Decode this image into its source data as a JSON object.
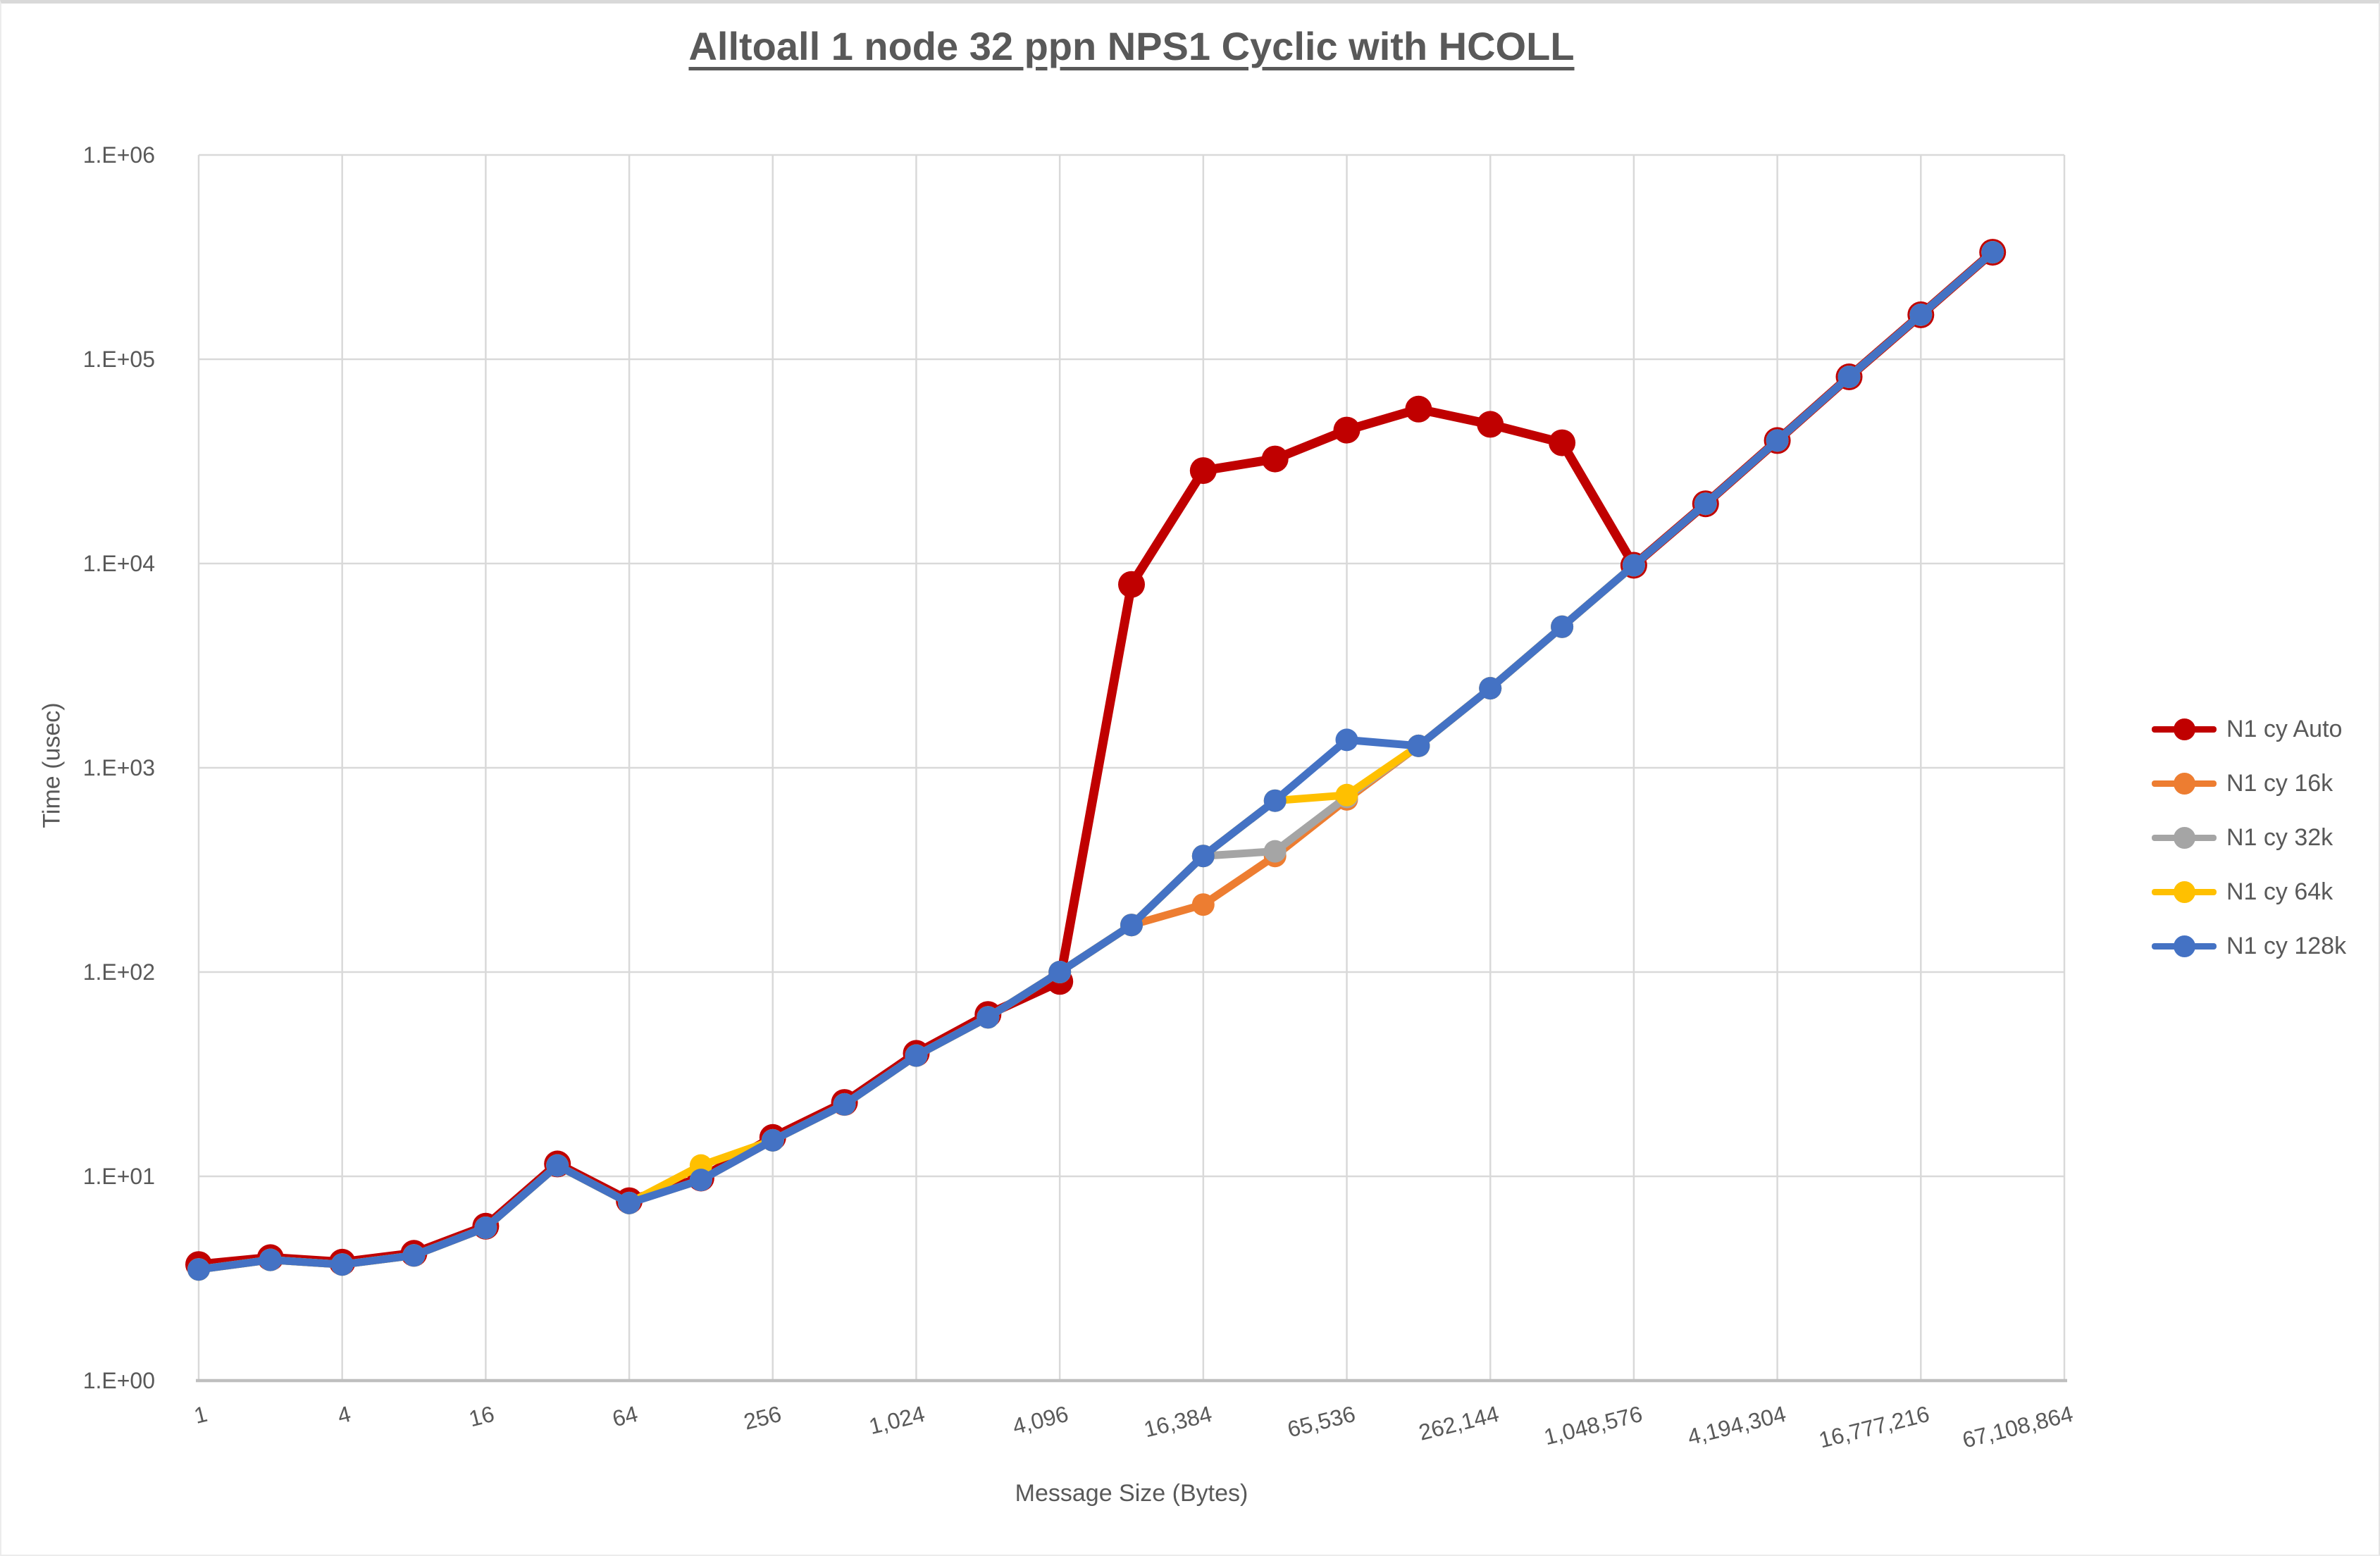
{
  "chart": {
    "title": "Alltoall 1 node 32 ppn NPS1 Cyclic with HCOLL",
    "x_axis_title": "Message Size (Bytes)",
    "y_axis_title": "Time (usec)",
    "y_tick_labels": [
      "1.E+00",
      "1.E+01",
      "1.E+02",
      "1.E+03",
      "1.E+04",
      "1.E+05",
      "1.E+06"
    ],
    "x_tick_labels": [
      "1",
      "4",
      "16",
      "64",
      "256",
      "1,024",
      "4,096",
      "16,384",
      "65,536",
      "262,144",
      "1,048,576",
      "4,194,304",
      "16,777,216",
      "67,108,864"
    ],
    "colors": {
      "gridline": "#d9d9d9",
      "axis_line": "#bfbfbf",
      "text": "#595959",
      "title": "#595959"
    }
  },
  "chart_data": {
    "type": "line",
    "title": "Alltoall 1 node 32 ppn NPS1 Cyclic with HCOLL",
    "xlabel": "Message Size (Bytes)",
    "ylabel": "Time (usec)",
    "x_scale": "log2_categorical",
    "y_scale": "log10",
    "ylim": [
      1,
      1000000
    ],
    "x_axis_last_label_bytes": 67108864,
    "grid": "both",
    "legend_position": "right",
    "x_categories_bytes": [
      1,
      2,
      4,
      8,
      16,
      32,
      64,
      128,
      256,
      512,
      1024,
      2048,
      4096,
      8192,
      16384,
      32768,
      65536,
      131072,
      262144,
      524288,
      1048576,
      2097152,
      4194304,
      8388608,
      16777216,
      33554432
    ],
    "series": [
      {
        "name": "N1 cy Auto",
        "color": "#c00000",
        "line_width": 13,
        "marker_radius": 19,
        "values": [
          3.7,
          4.0,
          3.8,
          4.2,
          5.7,
          11.5,
          7.6,
          9.8,
          15.5,
          23,
          40,
          62,
          90,
          7900,
          28500,
          32500,
          45000,
          57000,
          48000,
          39000,
          9800,
          19600,
          40000,
          82000,
          165000,
          334000
        ]
      },
      {
        "name": "N1 cy 16k",
        "color": "#ed7d31",
        "line_width": 11,
        "marker_radius": 16,
        "values": [
          3.5,
          3.9,
          3.7,
          4.1,
          5.6,
          11.3,
          7.4,
          9.6,
          15,
          22.5,
          39,
          60,
          100,
          170,
          214,
          370,
          700,
          1280,
          2450,
          4900,
          9800,
          19600,
          40000,
          82000,
          165000,
          334000
        ]
      },
      {
        "name": "N1 cy 32k",
        "color": "#a5a5a5",
        "line_width": 11,
        "marker_radius": 16,
        "values": [
          3.5,
          3.9,
          3.7,
          4.1,
          5.6,
          11.3,
          7.4,
          9.6,
          15,
          22.5,
          39,
          60,
          100,
          170,
          370,
          390,
          720,
          1280,
          2450,
          4900,
          9800,
          19600,
          40000,
          82000,
          165000,
          334000
        ]
      },
      {
        "name": "N1 cy 64k",
        "color": "#ffc000",
        "line_width": 11,
        "marker_radius": 16,
        "values": [
          3.5,
          3.9,
          3.7,
          4.1,
          5.6,
          11.3,
          7.4,
          11.3,
          15,
          22.5,
          39,
          60,
          100,
          170,
          370,
          690,
          735,
          1280,
          2450,
          4900,
          9800,
          19600,
          40000,
          82000,
          165000,
          334000
        ]
      },
      {
        "name": "N1 cy 128k",
        "color": "#4472c4",
        "line_width": 11,
        "marker_radius": 16,
        "values": [
          3.5,
          3.9,
          3.7,
          4.1,
          5.6,
          11.3,
          7.4,
          9.6,
          15,
          22.5,
          39,
          60,
          100,
          170,
          370,
          690,
          1370,
          1280,
          2450,
          4900,
          9800,
          19600,
          40000,
          82000,
          165000,
          334000
        ]
      }
    ]
  }
}
